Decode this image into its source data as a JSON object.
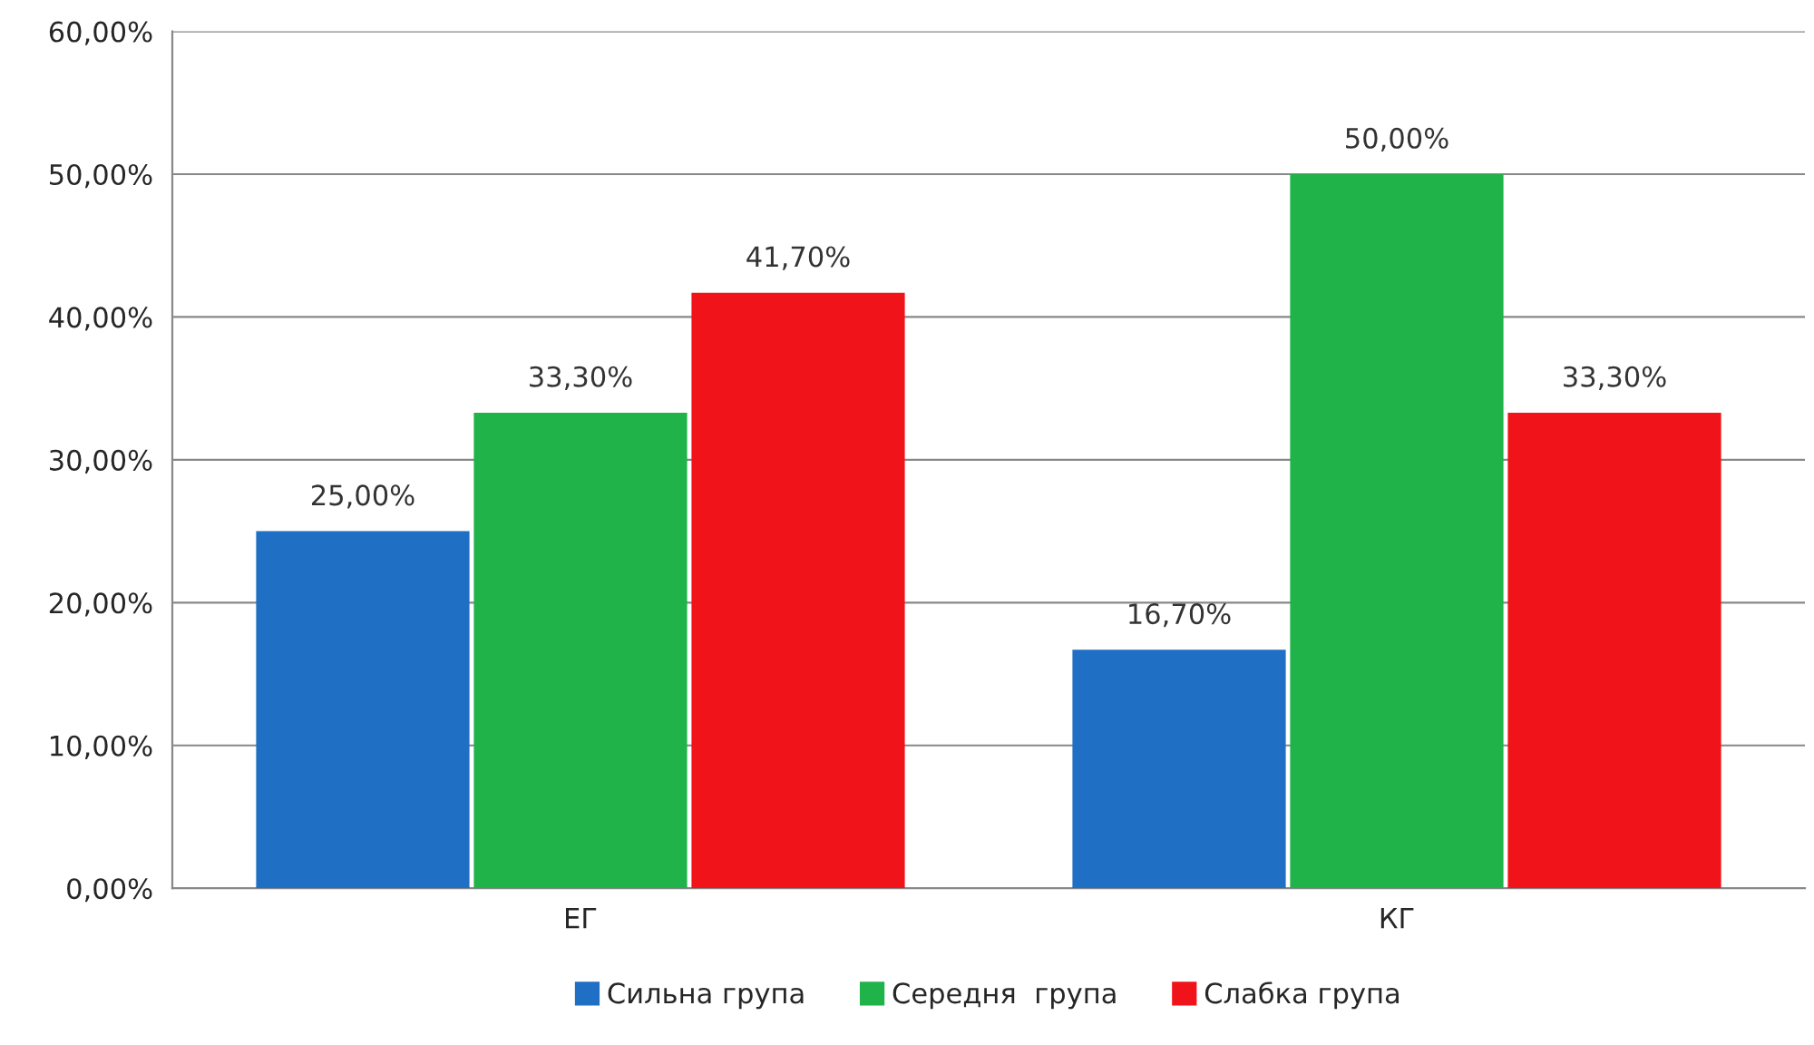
{
  "chart_data": {
    "type": "bar",
    "categories": [
      "ЕГ",
      "КГ"
    ],
    "series": [
      {
        "name": "Сильна група",
        "color": "#1f6fc4",
        "values": [
          25.0,
          16.7
        ],
        "value_labels": [
          "25,00%",
          "16,70%"
        ]
      },
      {
        "name": "Середня  група",
        "color": "#1fb34a",
        "values": [
          33.3,
          50.0
        ],
        "value_labels": [
          "33,30%",
          "50,00%"
        ]
      },
      {
        "name": "Слабка група",
        "color": "#f0141a",
        "values": [
          41.7,
          33.3
        ],
        "value_labels": [
          "41,70%",
          "33,30%"
        ]
      }
    ],
    "ylim": [
      0,
      60
    ],
    "yticks": [
      {
        "value": 0,
        "label": "0,00%"
      },
      {
        "value": 10,
        "label": "10,00%"
      },
      {
        "value": 20,
        "label": "20,00%"
      },
      {
        "value": 30,
        "label": "30,00%"
      },
      {
        "value": 40,
        "label": "40,00%"
      },
      {
        "value": 50,
        "label": "50,00%"
      },
      {
        "value": 60,
        "label": "60,00%"
      }
    ],
    "grid": "y",
    "legend": "bottom"
  }
}
